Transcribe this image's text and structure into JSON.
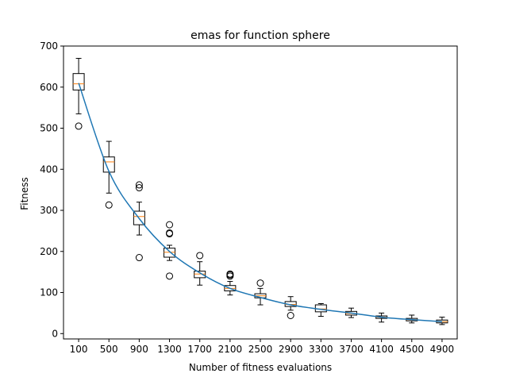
{
  "chart_data": {
    "type": "box",
    "title": "emas for function sphere",
    "xlabel": "Number of fitness evaluations",
    "ylabel": "Fitness",
    "ylim": [
      -13,
      700
    ],
    "yticks": [
      0,
      100,
      200,
      300,
      400,
      500,
      600,
      700
    ],
    "categories": [
      "100",
      "500",
      "900",
      "1300",
      "1700",
      "2100",
      "2500",
      "2900",
      "3300",
      "3700",
      "4100",
      "4500",
      "4900"
    ],
    "boxes": [
      {
        "min": 535,
        "q1": 593,
        "median": 608,
        "q3": 633,
        "max": 670,
        "outliers": [
          505
        ]
      },
      {
        "min": 342,
        "q1": 393,
        "median": 418,
        "q3": 430,
        "max": 468,
        "outliers": [
          313
        ]
      },
      {
        "min": 240,
        "q1": 265,
        "median": 285,
        "q3": 298,
        "max": 320,
        "outliers": [
          185,
          355,
          362
        ]
      },
      {
        "min": 178,
        "q1": 186,
        "median": 198,
        "q3": 208,
        "max": 215,
        "outliers": [
          140,
          243,
          245,
          265
        ]
      },
      {
        "min": 118,
        "q1": 136,
        "median": 145,
        "q3": 152,
        "max": 175,
        "outliers": [
          190
        ]
      },
      {
        "min": 94,
        "q1": 104,
        "median": 110,
        "q3": 117,
        "max": 127,
        "outliers": [
          140,
          143,
          145
        ]
      },
      {
        "min": 70,
        "q1": 87,
        "median": 92,
        "q3": 97,
        "max": 110,
        "outliers": [
          123
        ]
      },
      {
        "min": 57,
        "q1": 66,
        "median": 71,
        "q3": 78,
        "max": 90,
        "outliers": [
          44
        ]
      },
      {
        "min": 42,
        "q1": 53,
        "median": 60,
        "q3": 70,
        "max": 73,
        "outliers": []
      },
      {
        "min": 39,
        "q1": 45,
        "median": 49,
        "q3": 54,
        "max": 62,
        "outliers": []
      },
      {
        "min": 28,
        "q1": 37,
        "median": 40,
        "q3": 43,
        "max": 50,
        "outliers": []
      },
      {
        "min": 26,
        "q1": 31,
        "median": 34,
        "q3": 37,
        "max": 45,
        "outliers": []
      },
      {
        "min": 22,
        "q1": 26,
        "median": 29,
        "q3": 33,
        "max": 40,
        "outliers": []
      }
    ],
    "trend_line": {
      "color": "#1f77b4",
      "values": [
        610,
        395,
        280,
        200,
        148,
        110,
        88,
        70,
        59,
        50,
        40,
        34,
        29
      ]
    },
    "colors": {
      "box": "#000000",
      "median": "#ff7f0e",
      "line": "#1f77b4"
    },
    "grid": false
  }
}
